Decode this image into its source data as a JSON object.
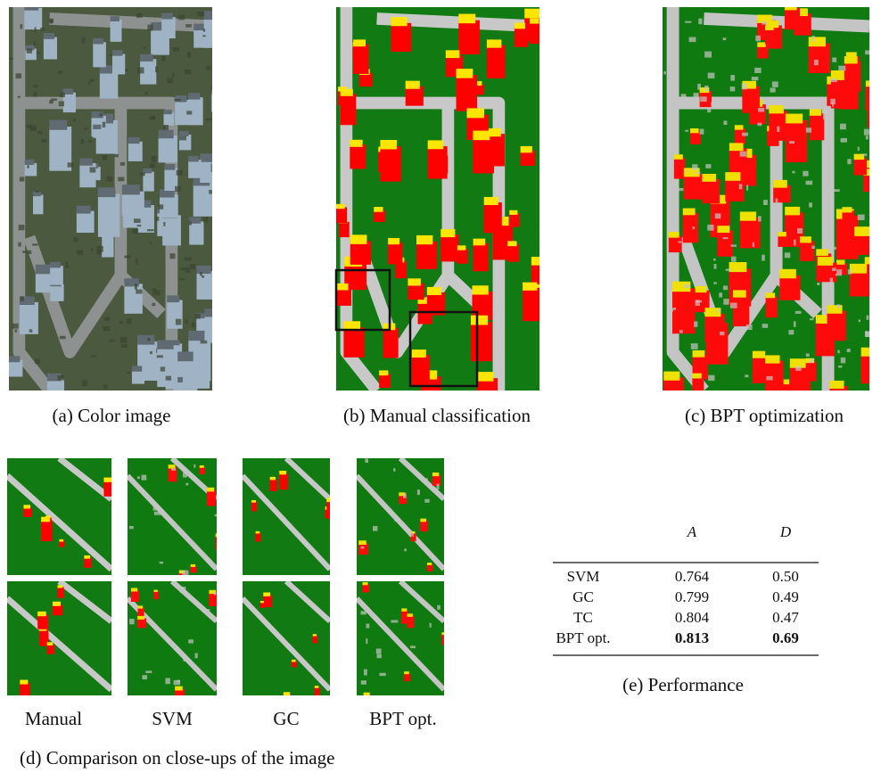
{
  "panels": [
    {
      "caption": "(a) Color image"
    },
    {
      "caption": "(b) Manual classification"
    },
    {
      "caption": "(c) BPT optimization"
    }
  ],
  "closeups": {
    "labels": [
      "Manual",
      "SVM",
      "GC",
      "BPT opt."
    ],
    "caption": "(d) Comparison on close-ups of the image"
  },
  "table": {
    "columns": [
      "A",
      "D"
    ],
    "rows": [
      [
        "SVM",
        "0.764",
        "0.50"
      ],
      [
        "GC",
        "0.799",
        "0.49"
      ],
      [
        "TC",
        "0.804",
        "0.47"
      ],
      [
        "BPT opt.",
        "0.813",
        "0.69"
      ]
    ],
    "caption": "(e) Performance"
  }
}
